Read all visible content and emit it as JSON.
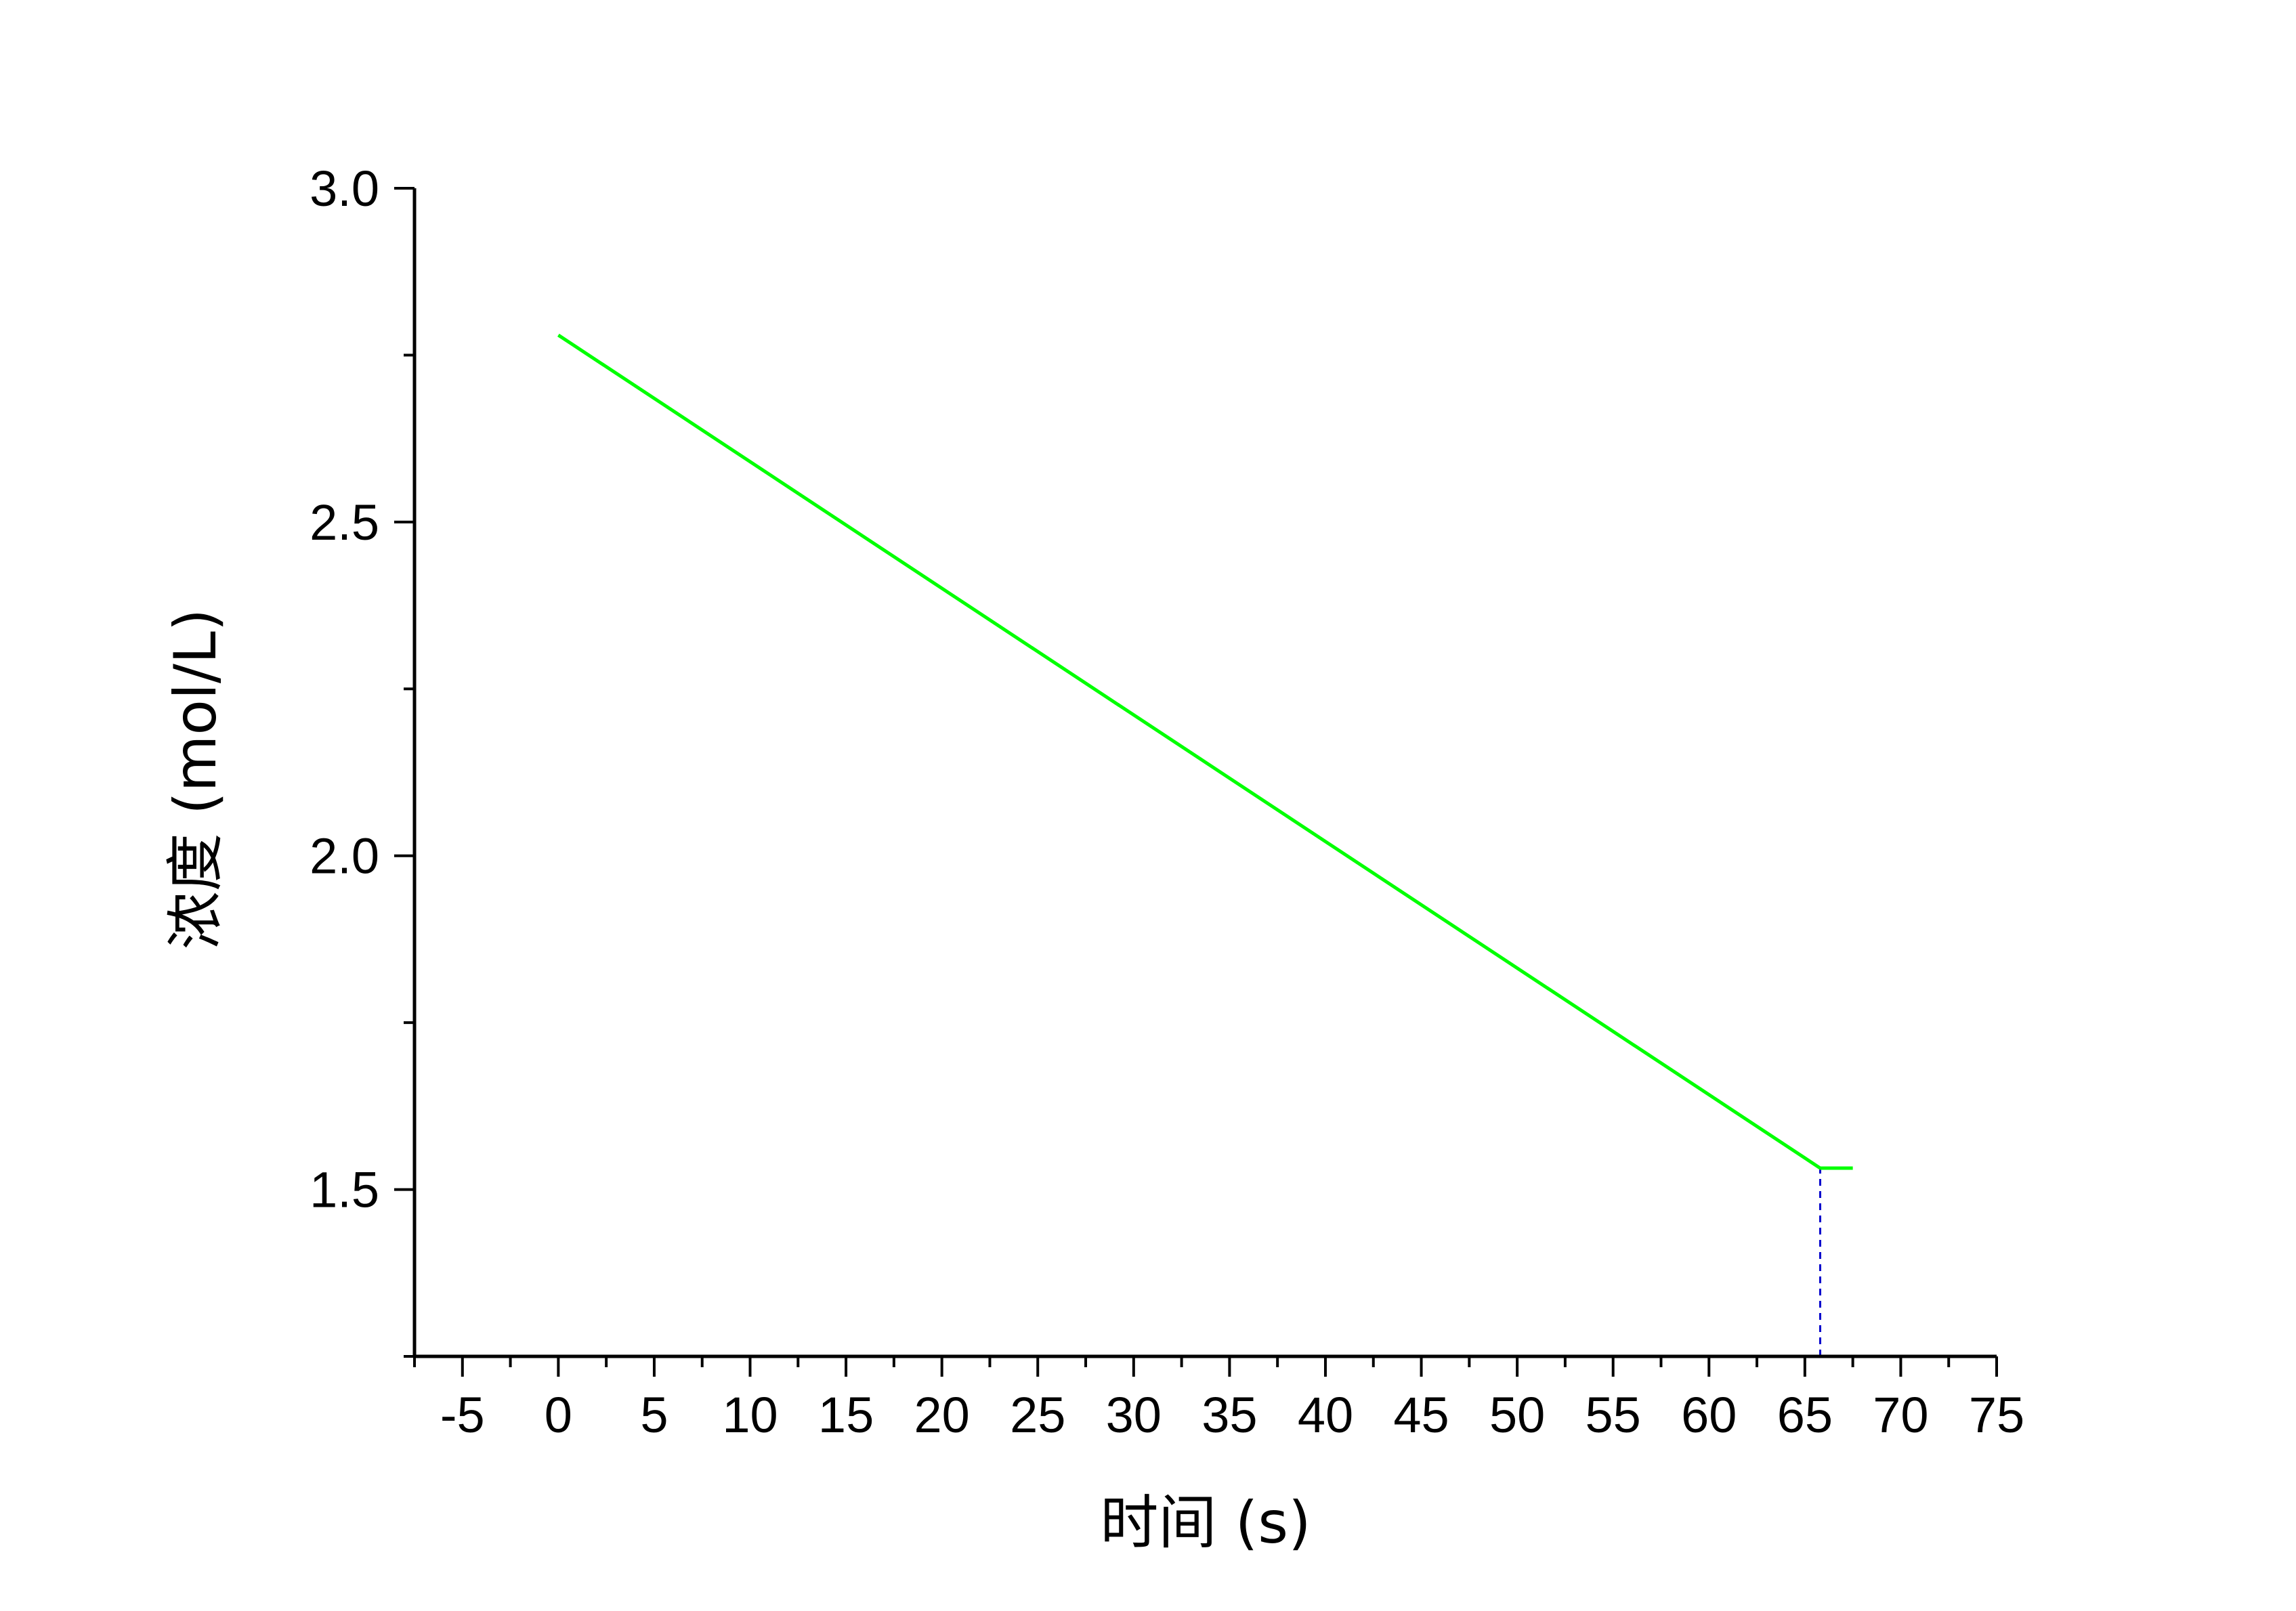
{
  "chart_data": {
    "type": "line",
    "title": "",
    "xlabel": "时间 (s)",
    "ylabel": "浓度 (mol/L)",
    "xlim": [
      -7.5,
      75
    ],
    "ylim": [
      1.25,
      3.0
    ],
    "x_ticks": [
      -5,
      0,
      5,
      10,
      15,
      20,
      25,
      30,
      35,
      40,
      45,
      50,
      55,
      60,
      65,
      70,
      75
    ],
    "x_tick_labels": [
      "-5",
      "0",
      "5",
      "10",
      "15",
      "20",
      "25",
      "30",
      "35",
      "40",
      "45",
      "50",
      "55",
      "60",
      "65",
      "70",
      "75"
    ],
    "x_minor_step": 2.5,
    "y_ticks": [
      1.5,
      2.0,
      2.5,
      3.0
    ],
    "y_tick_labels": [
      "1.5",
      "2.0",
      "2.5",
      "3.0"
    ],
    "y_minor_ticks": [
      1.25,
      1.75,
      2.25,
      2.75
    ],
    "grid": false,
    "series": [
      {
        "color": "#00ff00",
        "x": [
          0,
          65.8,
          67.5
        ],
        "y": [
          2.78,
          1.532,
          1.532
        ]
      }
    ],
    "reference_lines": [
      {
        "style": "dashed",
        "color": "#0000cc",
        "x": 65.8,
        "y_from": 1.25,
        "y_to": 1.532
      }
    ]
  }
}
